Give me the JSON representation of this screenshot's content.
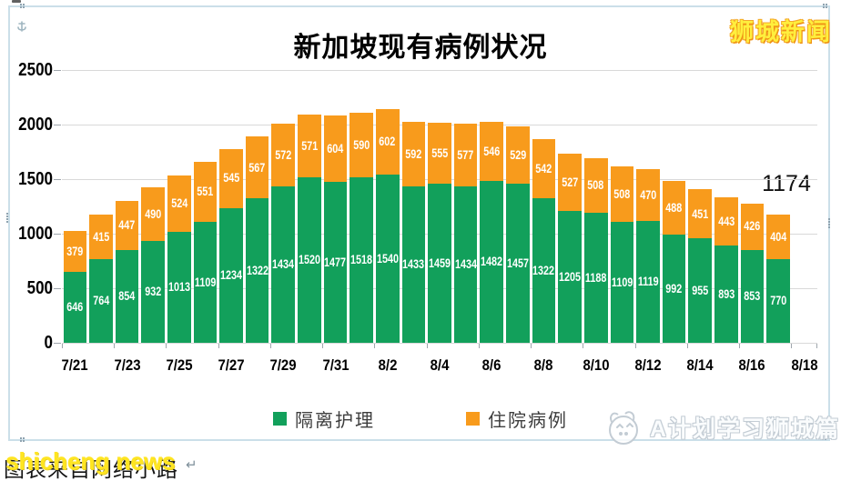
{
  "chart_data": {
    "type": "bar",
    "stacked": true,
    "title": "新加坡现有病例状况",
    "ylim": [
      0,
      2500
    ],
    "y_ticks": [
      0,
      500,
      1000,
      1500,
      2000,
      2500
    ],
    "x_tick_labels": [
      "7/21",
      "7/23",
      "7/25",
      "7/27",
      "7/29",
      "7/31",
      "8/2",
      "8/4",
      "8/6",
      "8/8",
      "8/10",
      "8/12",
      "8/14",
      "8/16",
      "8/18"
    ],
    "bars_count": 28,
    "trailing_empty_slots": 1,
    "grid": true,
    "legend_position": "bottom",
    "annotation_label": "1174",
    "series": [
      {
        "name": "隔离护理",
        "color": "#12a05b",
        "values": [
          646,
          764,
          854,
          932,
          1013,
          1109,
          1234,
          1322,
          1434,
          1520,
          1477,
          1518,
          1540,
          1433,
          1459,
          1434,
          1482,
          1457,
          1322,
          1205,
          1188,
          1109,
          1119,
          992,
          955,
          893,
          853,
          770
        ]
      },
      {
        "name": "住院病例",
        "color": "#f89b1c",
        "values": [
          379,
          415,
          447,
          490,
          524,
          551,
          545,
          567,
          572,
          571,
          604,
          590,
          602,
          592,
          555,
          577,
          546,
          529,
          542,
          527,
          508,
          508,
          470,
          488,
          451,
          443,
          426,
          404
        ]
      }
    ]
  },
  "watermarks": {
    "top_right": "狮城新闻",
    "bottom_left_yellow": "shicheng news",
    "bottom_right": "A计划学习狮城篇"
  },
  "caption": {
    "black_text": "图表来自网络小路",
    "return_mark": "↵"
  },
  "colors": {
    "green": "#12a05b",
    "orange": "#f89b1c",
    "gridline": "#d9d9d9",
    "frame_border": "#cbdfe9",
    "value_label": "#ffffff",
    "watermark_yellow": "#ffe51f",
    "shicheng_yellow": "#ffef3d",
    "shicheng_outline": "#ef9214",
    "watermark_gray": "#c3ccd4"
  }
}
